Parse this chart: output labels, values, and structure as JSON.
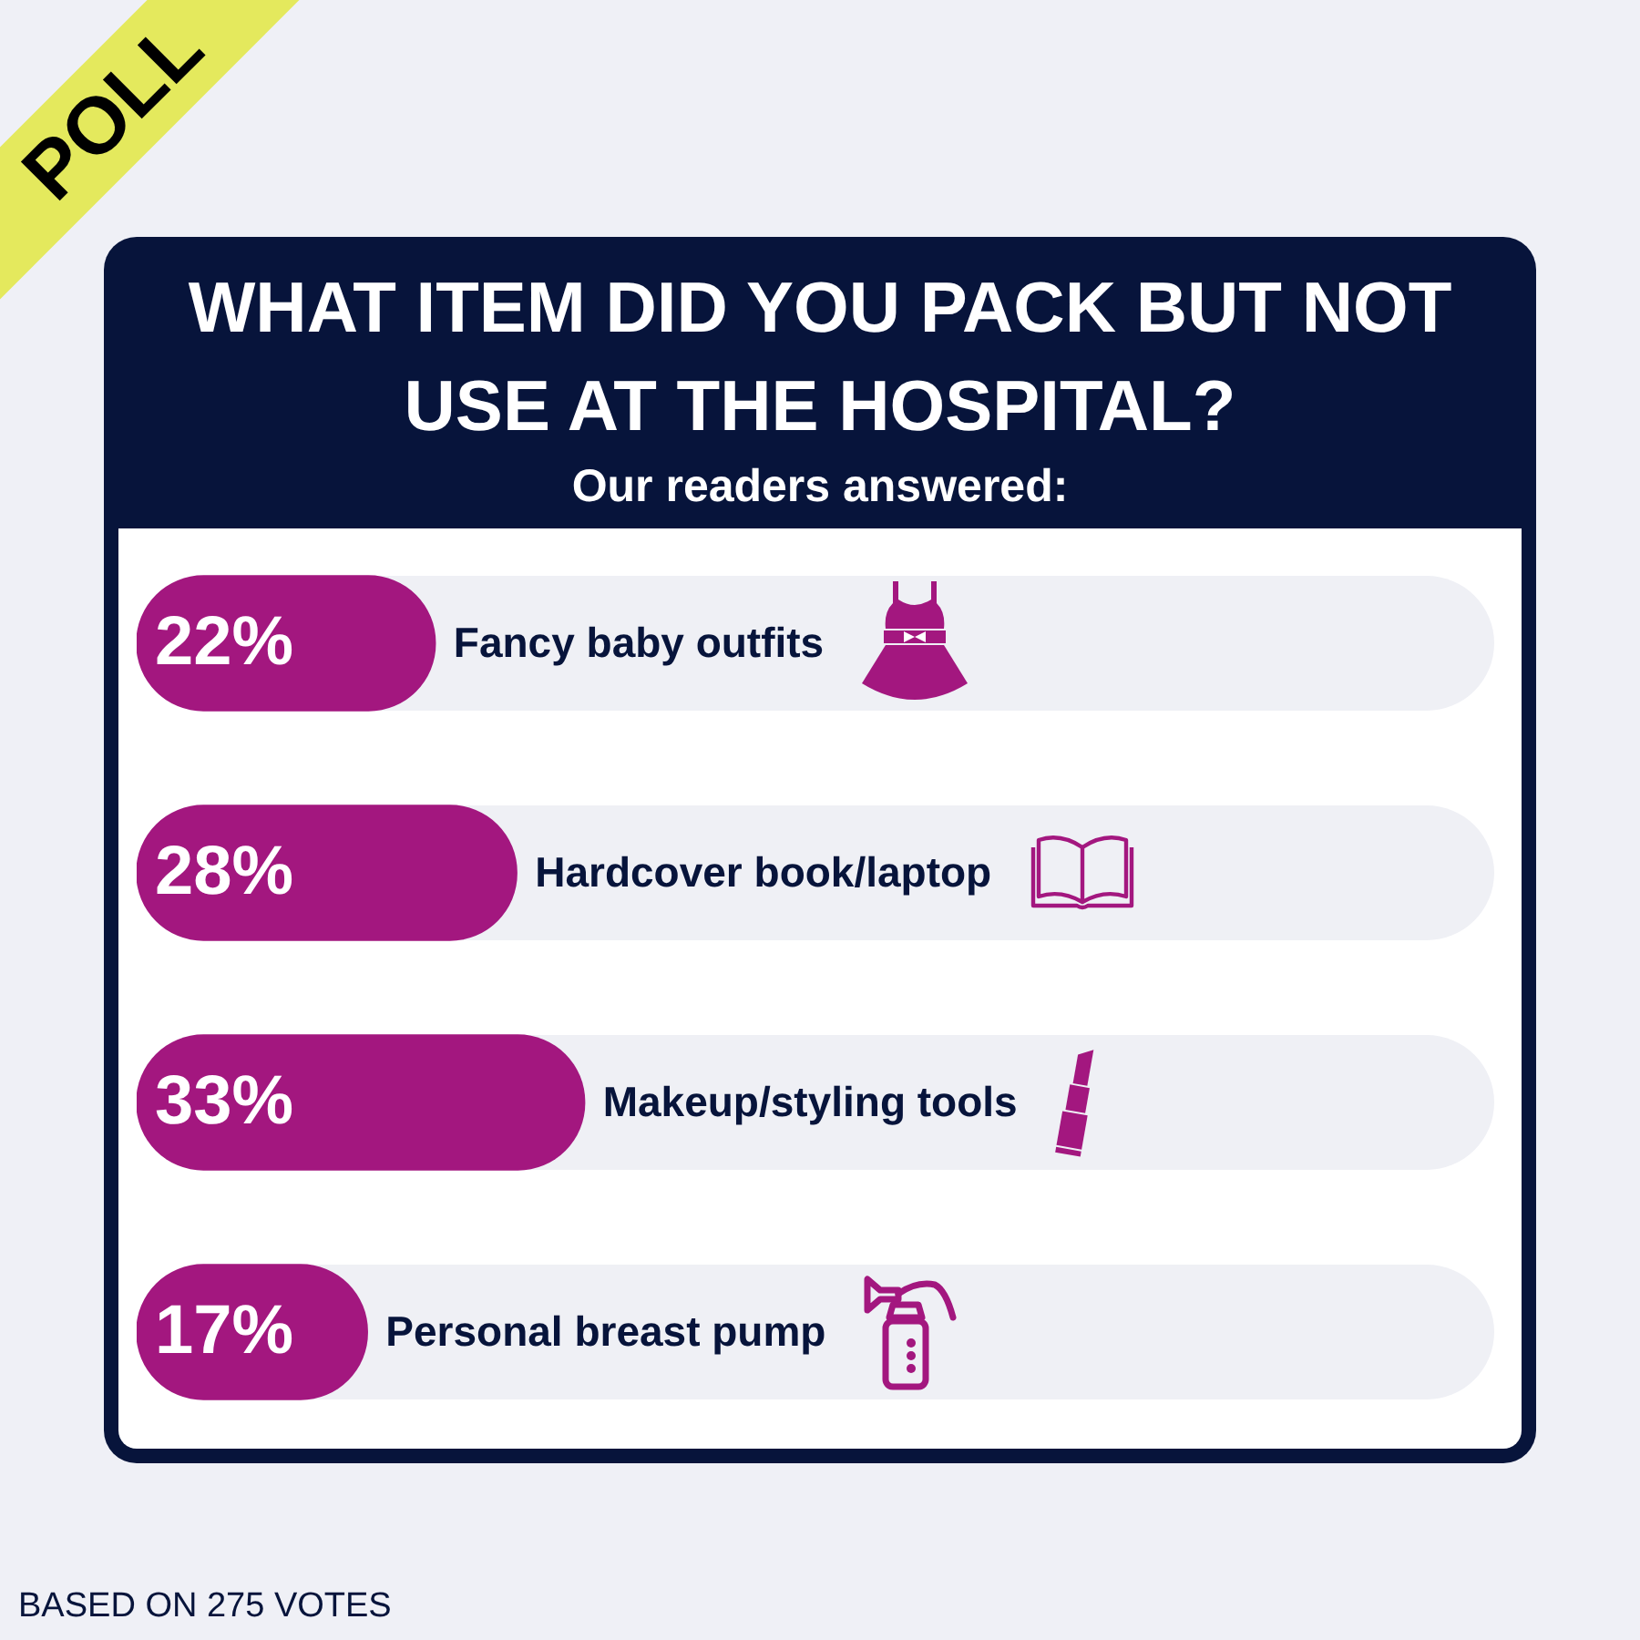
{
  "chart_data": {
    "type": "bar",
    "orientation": "horizontal",
    "title": "WHAT ITEM DID YOU PACK BUT NOT USE AT THE HOSPITAL?",
    "subtitle": "Our readers answered:",
    "categories": [
      "Fancy baby outfits",
      "Hardcover book/laptop",
      "Makeup/styling tools",
      "Personal breast pump"
    ],
    "values": [
      22,
      28,
      33,
      17
    ],
    "value_labels": [
      "22%",
      "28%",
      "33%",
      "17%"
    ],
    "color": "#a3177f",
    "xlim": [
      0,
      100
    ],
    "tick_labels": false,
    "annotations": [
      "POLL",
      "BASED ON 275 VOTES"
    ]
  }
}
